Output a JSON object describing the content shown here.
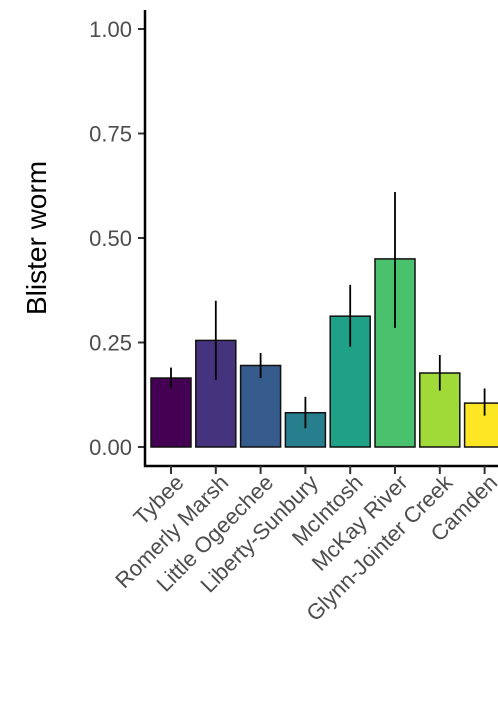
{
  "chart_data": {
    "type": "bar",
    "title": "",
    "xlabel": "",
    "ylabel": "Blister worm",
    "ylim": [
      0,
      1
    ],
    "yticks": [
      "0.00",
      "0.25",
      "0.50",
      "0.75",
      "1.00"
    ],
    "grid": false,
    "legend": "none",
    "categories": [
      "Tybee",
      "Romerly Marsh",
      "Little Ogeechee",
      "Liberty-Sunbury",
      "McIntosh",
      "McKay River",
      "Glynn-Jointer Creek",
      "Camden"
    ],
    "values": [
      0.165,
      0.255,
      0.195,
      0.082,
      0.313,
      0.45,
      0.177,
      0.105
    ],
    "err_low": [
      0.14,
      0.16,
      0.165,
      0.045,
      0.24,
      0.285,
      0.135,
      0.075
    ],
    "err_high": [
      0.19,
      0.35,
      0.225,
      0.12,
      0.388,
      0.61,
      0.22,
      0.14
    ],
    "colors": [
      "#440154",
      "#46337e",
      "#365c8d",
      "#277f8e",
      "#1fa187",
      "#4ac16d",
      "#a0da39",
      "#fde725"
    ]
  }
}
